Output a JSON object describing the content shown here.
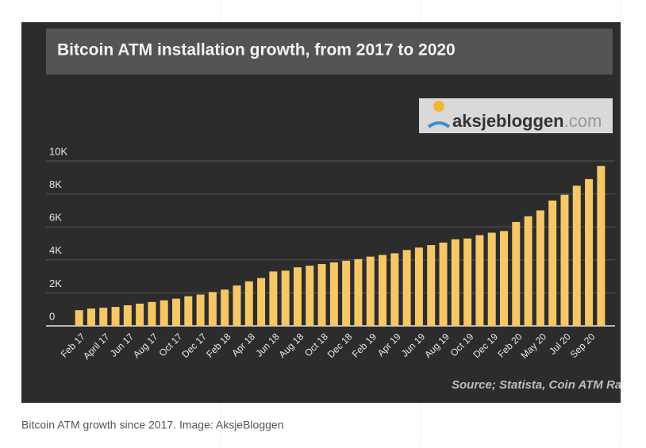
{
  "chart_data": {
    "type": "bar",
    "title": "Bitcoin ATM installation growth, from 2017 to 2020",
    "logo": {
      "name": "aksjebloggen",
      "suffix": ".com"
    },
    "source": "Source; Statista, Coin ATM Radar",
    "caption": "Bitcoin ATM growth since 2017. Image: AksjeBloggen",
    "categories": [
      "Feb 17",
      null,
      "April 17",
      null,
      "Jun 17",
      null,
      "Aug 17",
      null,
      "Oct 17",
      null,
      "Dec 17",
      null,
      "Feb 18",
      null,
      "Apr 18",
      null,
      "Jun 18",
      null,
      "Aug 18",
      null,
      "Oct 18",
      null,
      "Dec 18",
      null,
      "Feb 19",
      null,
      "Apr 19",
      null,
      "Jun 19",
      null,
      "Aug 19",
      null,
      "Oct 19",
      null,
      "Dec 19",
      null,
      "Feb 20",
      null,
      "May 20",
      null,
      "Jul 20",
      null,
      "Sep 20",
      null
    ],
    "values": [
      950,
      1050,
      1100,
      1150,
      1250,
      1350,
      1450,
      1550,
      1650,
      1800,
      1900,
      2050,
      2200,
      2450,
      2700,
      2900,
      3300,
      3350,
      3550,
      3650,
      3750,
      3850,
      3950,
      4050,
      4200,
      4300,
      4400,
      4600,
      4750,
      4900,
      5050,
      5250,
      5300,
      5500,
      5650,
      5750,
      6300,
      6650,
      7000,
      7600,
      7950,
      8500,
      8900,
      9700
    ],
    "color": "#f5c766",
    "ylim": [
      0,
      10000
    ],
    "yticks": [
      0,
      {
        "value": 2000,
        "label": "2K"
      },
      {
        "value": 4000,
        "label": "4K"
      },
      {
        "value": 6000,
        "label": "6K"
      },
      {
        "value": 8000,
        "label": "8K"
      },
      {
        "value": 10000,
        "label": "10K"
      }
    ],
    "grid": true
  }
}
